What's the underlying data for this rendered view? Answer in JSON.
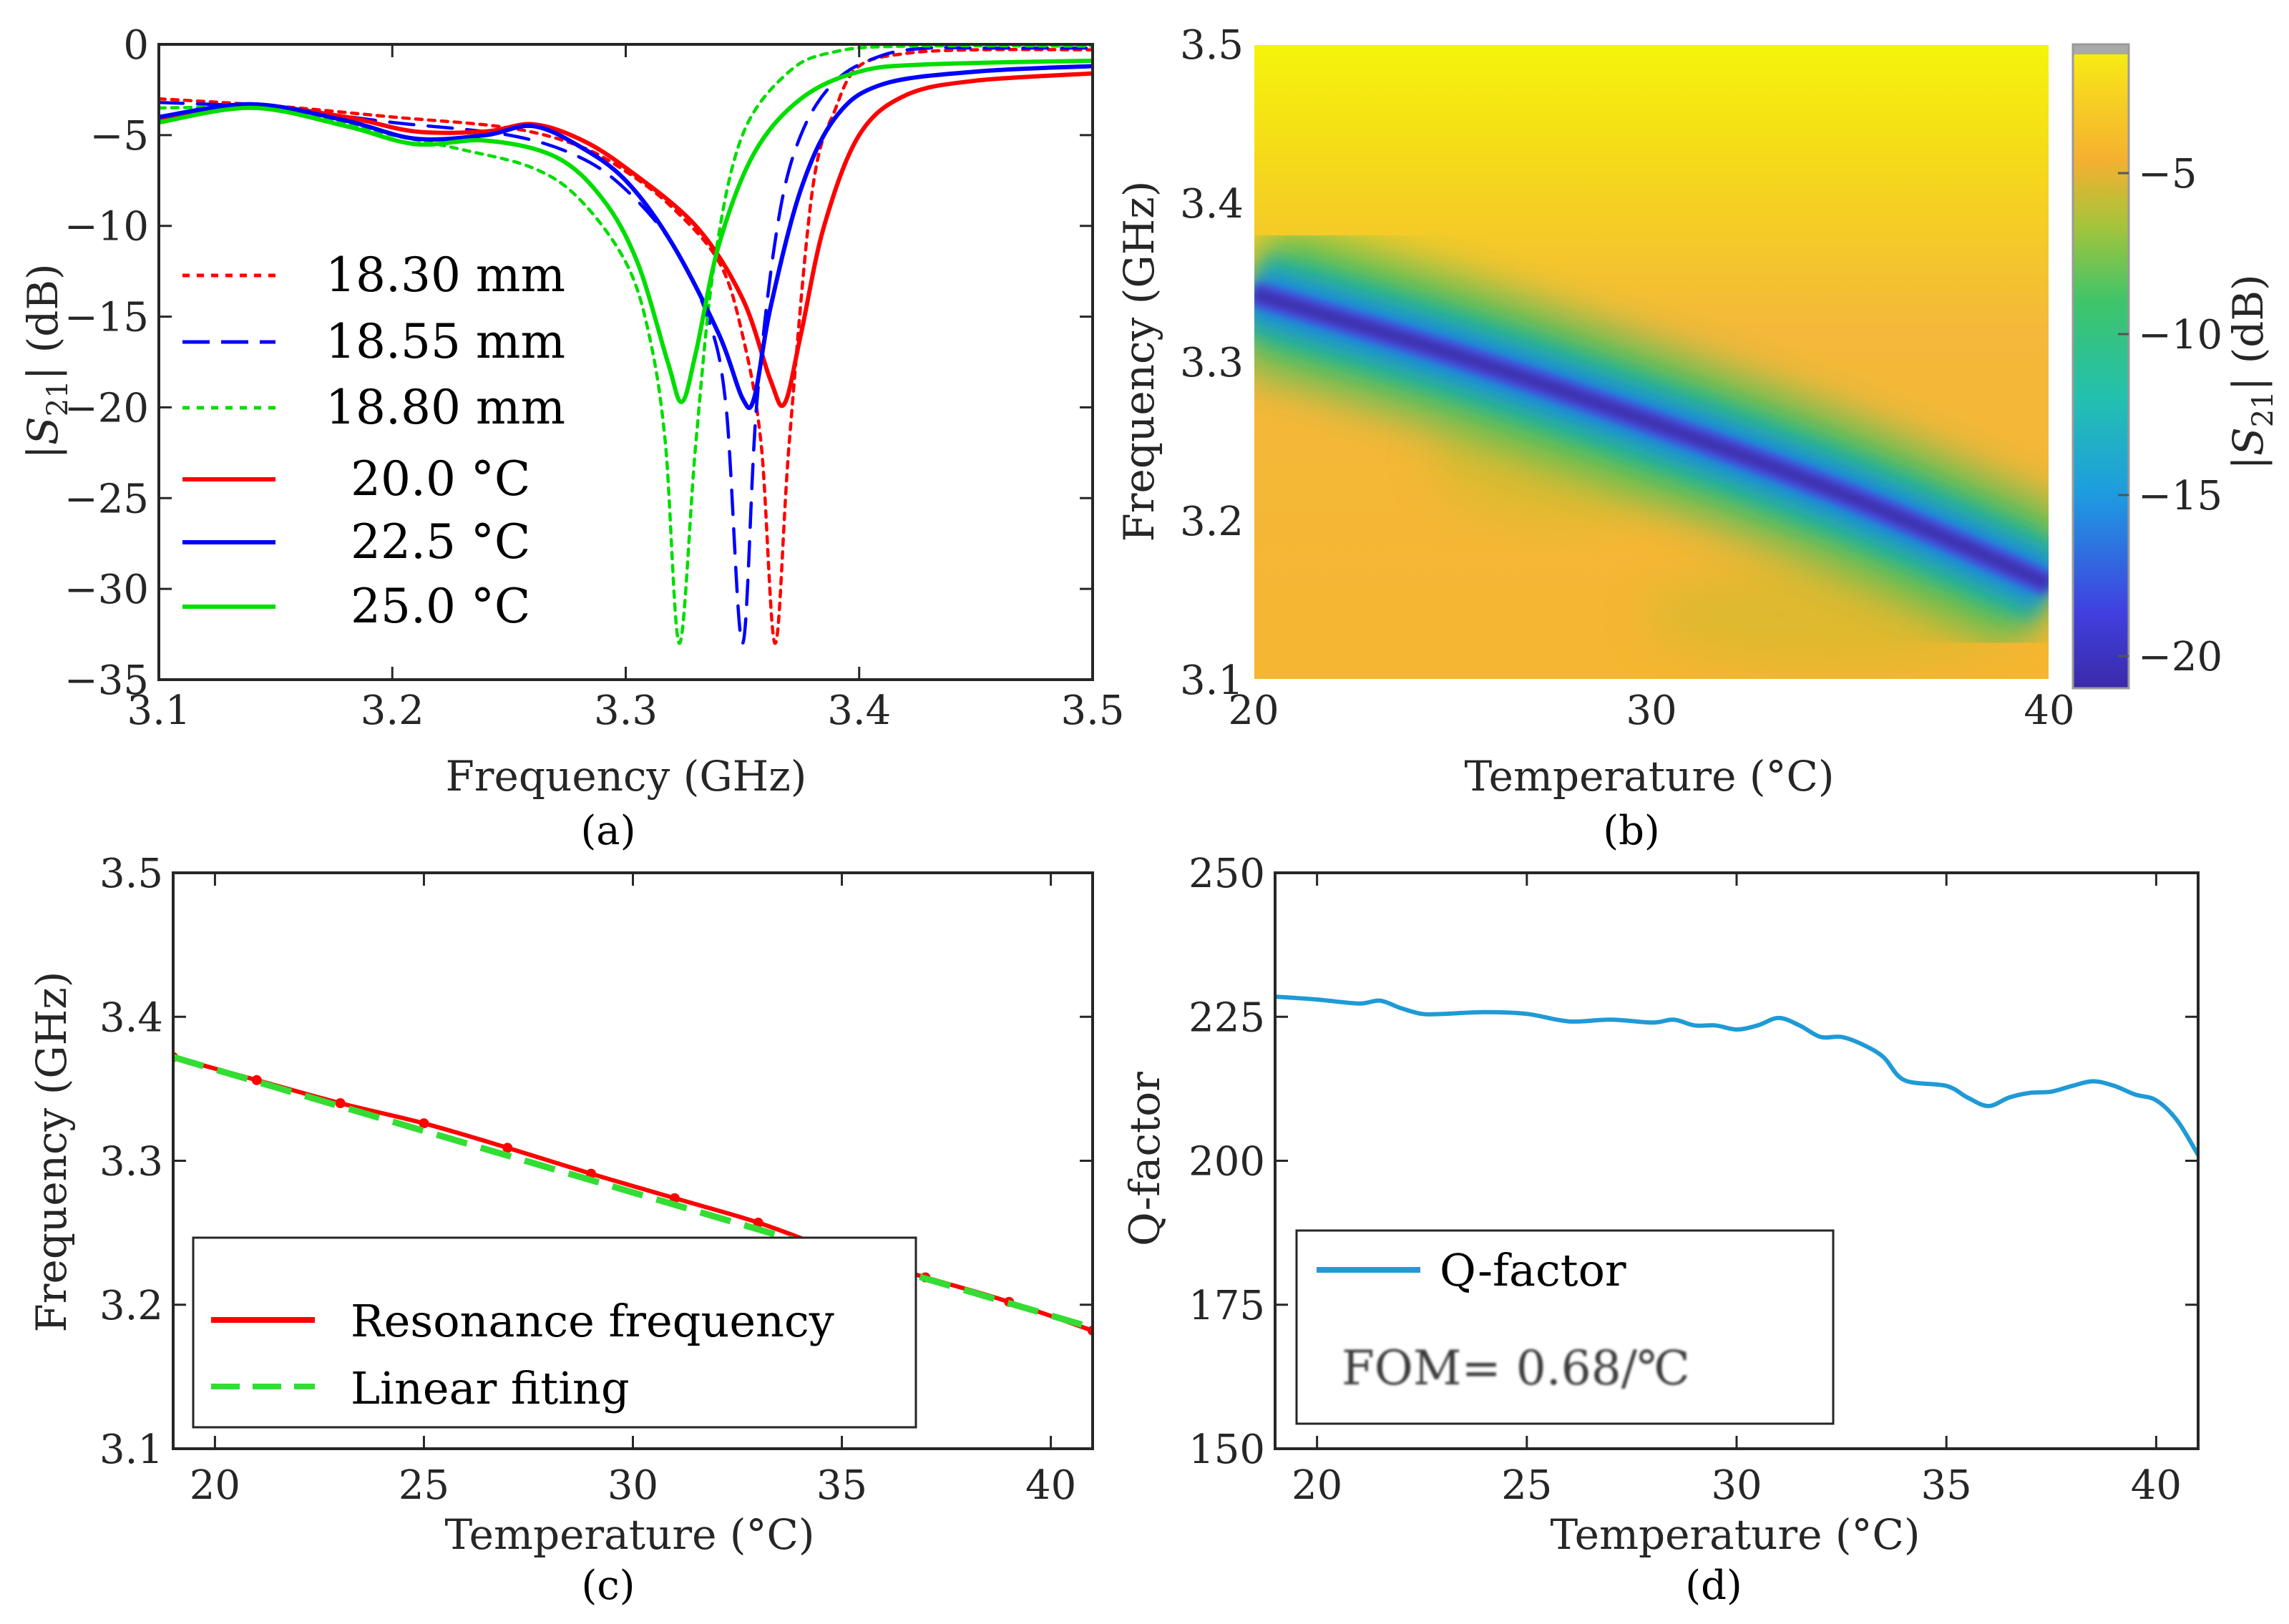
{
  "chart_data": [
    {
      "id": "a",
      "type": "line",
      "panel_label": "(a)",
      "xlabel": "Frequency (GHz)",
      "ylabel": "|S21| (dB)",
      "xlim": [
        3.1,
        3.5
      ],
      "ylim": [
        -35,
        0
      ],
      "xticks": [
        3.1,
        3.2,
        3.3,
        3.4,
        3.5
      ],
      "xtick_labels": [
        "3.1",
        "3.2",
        "3.3",
        "3.4",
        "3.5"
      ],
      "yticks": [
        0,
        -5,
        -10,
        -15,
        -20,
        -25,
        -30,
        -35
      ],
      "ytick_labels": [
        "0",
        "−5",
        "−10",
        "−15",
        "−20",
        "−25",
        "−30",
        "−35"
      ],
      "legend_position": "left",
      "series": [
        {
          "name": "18.30 mm",
          "color": "#ff0000",
          "dash": "dotted",
          "x": [
            3.1,
            3.15,
            3.2,
            3.25,
            3.28,
            3.3,
            3.32,
            3.34,
            3.35,
            3.358,
            3.364,
            3.37,
            3.38,
            3.39,
            3.4,
            3.42,
            3.45,
            3.5
          ],
          "y": [
            -3.0,
            -3.4,
            -4.0,
            -4.6,
            -5.6,
            -7.0,
            -9.0,
            -12.0,
            -16.0,
            -22.0,
            -33.0,
            -22.0,
            -8.0,
            -3.5,
            -1.2,
            -0.5,
            -0.3,
            -0.3
          ]
        },
        {
          "name": "18.55 mm",
          "color": "#0000ff",
          "dash": "dashed",
          "x": [
            3.1,
            3.15,
            3.2,
            3.25,
            3.28,
            3.3,
            3.32,
            3.335,
            3.343,
            3.35,
            3.356,
            3.365,
            3.375,
            3.39,
            3.41,
            3.43,
            3.45,
            3.5
          ],
          "y": [
            -3.2,
            -3.5,
            -4.3,
            -5.0,
            -6.2,
            -8.0,
            -11.0,
            -15.0,
            -20.0,
            -33.0,
            -20.0,
            -10.0,
            -5.0,
            -2.0,
            -0.6,
            -0.2,
            -0.2,
            -0.2
          ]
        },
        {
          "name": "18.80 mm",
          "color": "#00dd00",
          "dash": "dotted",
          "x": [
            3.1,
            3.15,
            3.2,
            3.23,
            3.26,
            3.28,
            3.3,
            3.31,
            3.317,
            3.323,
            3.33,
            3.338,
            3.35,
            3.37,
            3.39,
            3.42,
            3.5
          ],
          "y": [
            -3.5,
            -3.6,
            -5.0,
            -5.8,
            -6.8,
            -8.5,
            -12.0,
            -16.0,
            -22.0,
            -33.0,
            -22.0,
            -12.0,
            -5.0,
            -1.5,
            -0.4,
            -0.1,
            -0.1
          ]
        },
        {
          "name": "20.0 °C",
          "color": "#ff0000",
          "dash": "solid",
          "x": [
            3.1,
            3.14,
            3.18,
            3.21,
            3.24,
            3.26,
            3.28,
            3.3,
            3.33,
            3.35,
            3.362,
            3.368,
            3.375,
            3.385,
            3.4,
            3.42,
            3.45,
            3.5
          ],
          "y": [
            -4.2,
            -3.4,
            -4.0,
            -4.8,
            -4.8,
            -4.4,
            -5.2,
            -6.8,
            -10.0,
            -14.0,
            -18.5,
            -19.8,
            -16.0,
            -10.0,
            -5.0,
            -2.8,
            -2.0,
            -1.6
          ]
        },
        {
          "name": "22.5 °C",
          "color": "#0000ff",
          "dash": "solid",
          "x": [
            3.1,
            3.14,
            3.18,
            3.21,
            3.24,
            3.26,
            3.28,
            3.3,
            3.32,
            3.34,
            3.35,
            3.355,
            3.362,
            3.375,
            3.39,
            3.41,
            3.45,
            3.5
          ],
          "y": [
            -4.0,
            -3.3,
            -4.2,
            -5.2,
            -5.0,
            -4.5,
            -5.6,
            -7.5,
            -11.0,
            -16.0,
            -19.5,
            -19.5,
            -14.5,
            -8.0,
            -4.0,
            -2.2,
            -1.5,
            -1.2
          ]
        },
        {
          "name": "25.0 °C",
          "color": "#00dd00",
          "dash": "solid",
          "x": [
            3.1,
            3.14,
            3.18,
            3.21,
            3.24,
            3.27,
            3.29,
            3.305,
            3.318,
            3.324,
            3.33,
            3.34,
            3.355,
            3.375,
            3.4,
            3.43,
            3.5
          ],
          "y": [
            -4.3,
            -3.5,
            -4.5,
            -5.5,
            -5.3,
            -6.2,
            -8.5,
            -12.0,
            -17.5,
            -19.7,
            -17.0,
            -11.0,
            -6.0,
            -3.0,
            -1.5,
            -1.1,
            -0.9
          ]
        }
      ]
    },
    {
      "id": "b",
      "type": "heatmap",
      "panel_label": "(b)",
      "xlabel": "Temperature (°C)",
      "ylabel": "Frequency (GHz)",
      "colorbar_label": "|S21| (dB)",
      "xlim": [
        20,
        40
      ],
      "ylim": [
        3.1,
        3.5
      ],
      "xticks": [
        20,
        30,
        40
      ],
      "xtick_labels": [
        "20",
        "30",
        "40"
      ],
      "yticks": [
        3.1,
        3.2,
        3.3,
        3.4,
        3.5
      ],
      "ytick_labels": [
        "3.1",
        "3.2",
        "3.3",
        "3.4",
        "3.5"
      ],
      "color_range": [
        -21,
        -1
      ],
      "colorbar_ticks": [
        -5,
        -10,
        -15,
        -20
      ],
      "colorbar_tick_labels": [
        "−5",
        "−10",
        "−15",
        "−20"
      ],
      "resonance_temperature": [
        20,
        25,
        30,
        35,
        40
      ],
      "resonance_frequency": [
        3.343,
        3.305,
        3.262,
        3.215,
        3.16
      ]
    },
    {
      "id": "c",
      "type": "line",
      "panel_label": "(c)",
      "xlabel": "Temperature (°C)",
      "ylabel": "Frequency (GHz)",
      "xlim": [
        19,
        41
      ],
      "ylim": [
        3.1,
        3.5
      ],
      "xticks": [
        20,
        25,
        30,
        35,
        40
      ],
      "xtick_labels": [
        "20",
        "25",
        "30",
        "35",
        "40"
      ],
      "yticks": [
        3.1,
        3.2,
        3.3,
        3.4,
        3.5
      ],
      "ytick_labels": [
        "3.1",
        "3.2",
        "3.3",
        "3.4",
        "3.5"
      ],
      "legend_position": "bottom-left",
      "series": [
        {
          "name": "Resonance frequency",
          "color": "#ff0000",
          "dash": "solid",
          "x": [
            19,
            21,
            23,
            25,
            27,
            29,
            31,
            33,
            35,
            37,
            39,
            41
          ],
          "y": [
            3.372,
            3.356,
            3.34,
            3.326,
            3.309,
            3.291,
            3.274,
            3.257,
            3.236,
            3.219,
            3.202,
            3.182
          ]
        },
        {
          "name": "Linear fiting",
          "color": "#33dd33",
          "dash": "dashed",
          "x": [
            19,
            41
          ],
          "y": [
            3.372,
            3.184
          ]
        }
      ]
    },
    {
      "id": "d",
      "type": "line",
      "panel_label": "(d)",
      "xlabel": "Temperature (°C)",
      "ylabel": "Q-factor",
      "annotation": "FOM= 0.68/℃",
      "xlim": [
        19,
        41
      ],
      "ylim": [
        150,
        250
      ],
      "xticks": [
        20,
        25,
        30,
        35,
        40
      ],
      "xtick_labels": [
        "20",
        "25",
        "30",
        "35",
        "40"
      ],
      "yticks": [
        150,
        175,
        200,
        225,
        250
      ],
      "ytick_labels": [
        "150",
        "175",
        "200",
        "225",
        "250"
      ],
      "legend_position": "bottom-left",
      "series": [
        {
          "name": "Q-factor",
          "color": "#1f9ad6",
          "dash": "solid",
          "x": [
            19,
            20,
            21,
            21.5,
            22,
            22.5,
            23,
            24,
            25,
            26,
            27,
            28,
            28.5,
            29,
            29.5,
            30,
            30.5,
            31,
            31.5,
            32,
            32.5,
            33,
            33.5,
            34,
            35,
            35.5,
            36,
            36.5,
            37,
            37.5,
            38,
            38.5,
            39,
            39.5,
            40,
            40.5,
            41
          ],
          "y": [
            228.5,
            228,
            227.3,
            227.8,
            226.5,
            225.5,
            225.5,
            225.8,
            225.5,
            224.2,
            224.5,
            224,
            224.5,
            223.5,
            223.5,
            222.8,
            223.5,
            224.8,
            223.5,
            221.5,
            221.5,
            220.2,
            218,
            214,
            213,
            211,
            209.5,
            211,
            211.8,
            212,
            213,
            213.8,
            213,
            211.5,
            210.5,
            207,
            201
          ]
        }
      ]
    }
  ]
}
